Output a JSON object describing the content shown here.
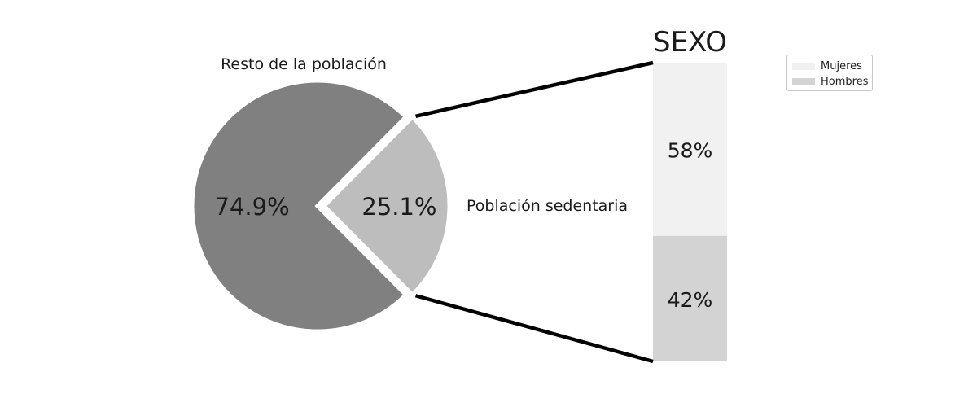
{
  "chart_data": [
    {
      "type": "pie",
      "slices": [
        {
          "label": "Resto de la población",
          "value": 74.9,
          "value_label": "74.9%",
          "color": "#808080"
        },
        {
          "label": "Población sedentaria",
          "value": 25.1,
          "value_label": "25.1%",
          "color": "#bdbdbd",
          "exploded": true
        }
      ]
    },
    {
      "type": "bar",
      "stacked": true,
      "title": "SEXO",
      "categories": [
        "Población sedentaria"
      ],
      "series": [
        {
          "name": "Mujeres",
          "values": [
            58
          ],
          "value_label": "58%",
          "color": "#f1f1f1"
        },
        {
          "name": "Hombres",
          "values": [
            42
          ],
          "value_label": "42%",
          "color": "#d3d3d3"
        }
      ],
      "legend_position": "top-right"
    }
  ]
}
